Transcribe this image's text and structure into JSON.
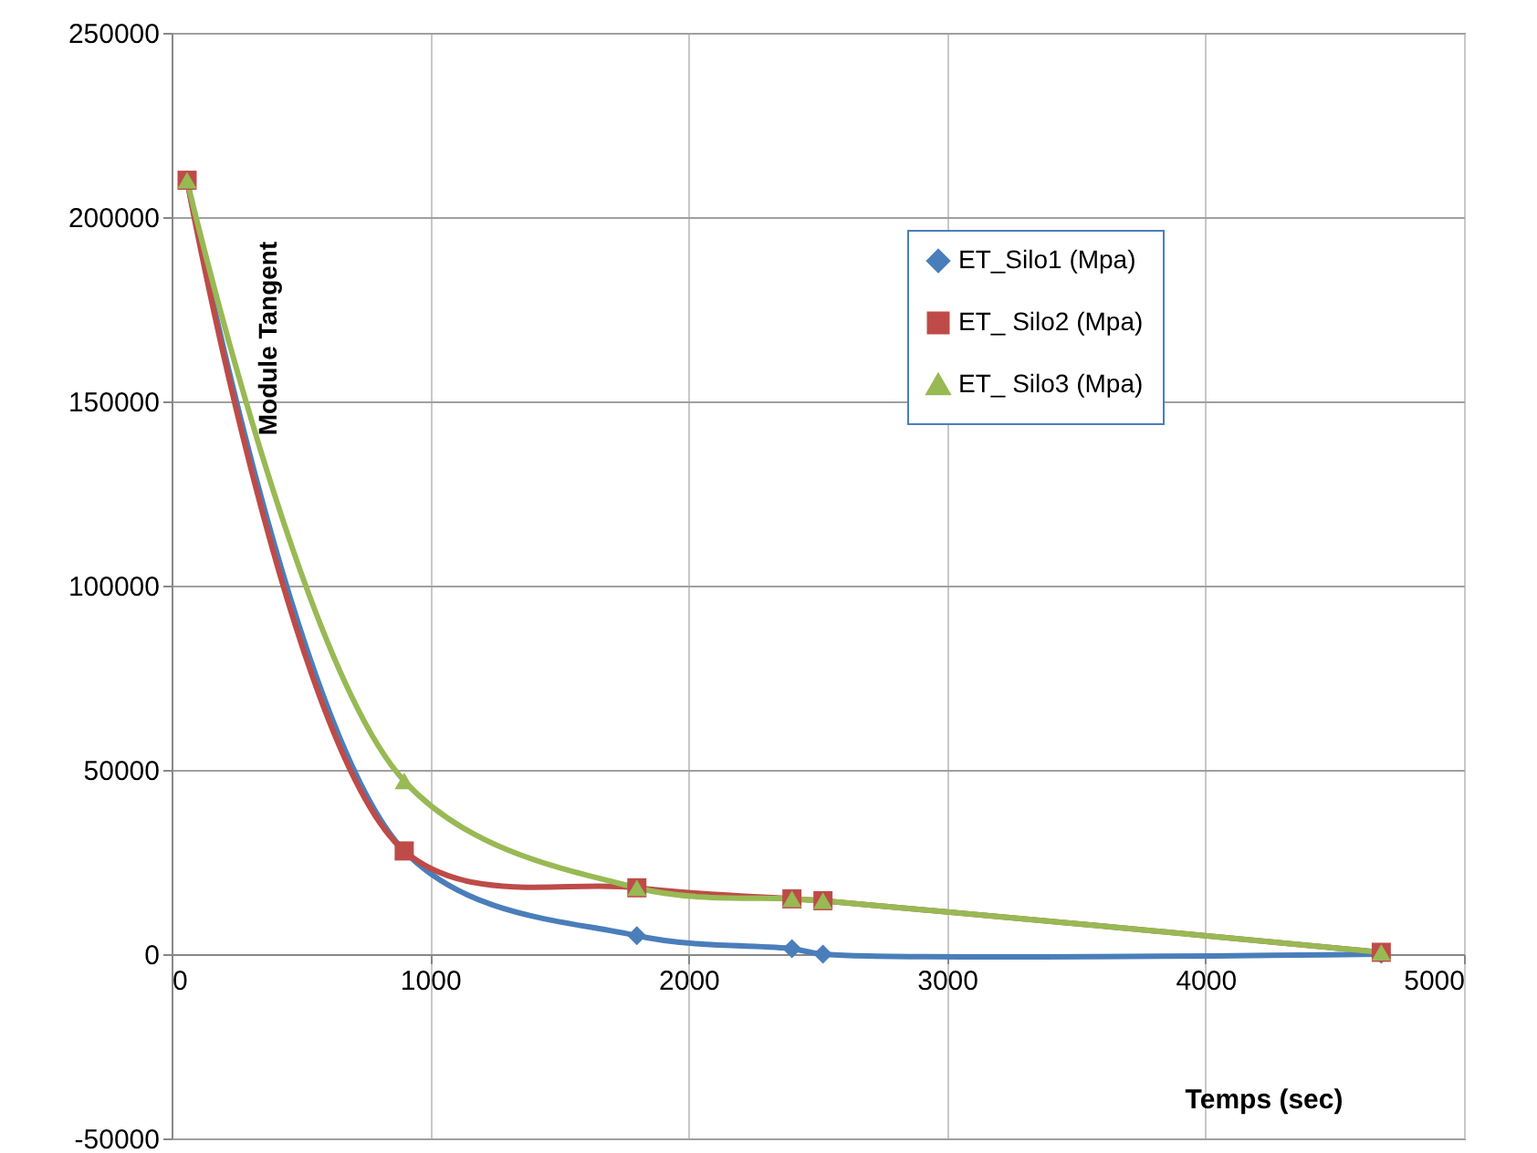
{
  "chart_data": {
    "type": "line",
    "xlabel": "Temps (sec)",
    "ylabel": "Module Tangent",
    "x": [
      60,
      900,
      1800,
      2400,
      2520,
      4680
    ],
    "series": [
      {
        "name": "ET_Silo1  (Mpa)",
        "color": "#4a7ebb",
        "marker": "diamond",
        "values": [
          210000,
          28000,
          5000,
          1500,
          0,
          0
        ]
      },
      {
        "name": "ET_ Silo2 (Mpa)",
        "color": "#be4b48",
        "marker": "square",
        "values": [
          210000,
          28000,
          18000,
          15000,
          14500,
          500
        ]
      },
      {
        "name": "ET_ Silo3 (Mpa)",
        "color": "#98b954",
        "marker": "triangle",
        "values": [
          210000,
          47000,
          18000,
          15000,
          14500,
          500
        ]
      }
    ],
    "xlim": [
      0,
      5000
    ],
    "xticks": [
      0,
      1000,
      2000,
      3000,
      4000,
      5000
    ],
    "ylim": [
      -50000,
      250000
    ],
    "yticks": [
      -50000,
      0,
      50000,
      100000,
      150000,
      200000,
      250000
    ],
    "grid": true,
    "legend": "top right",
    "line_style": "solid"
  }
}
